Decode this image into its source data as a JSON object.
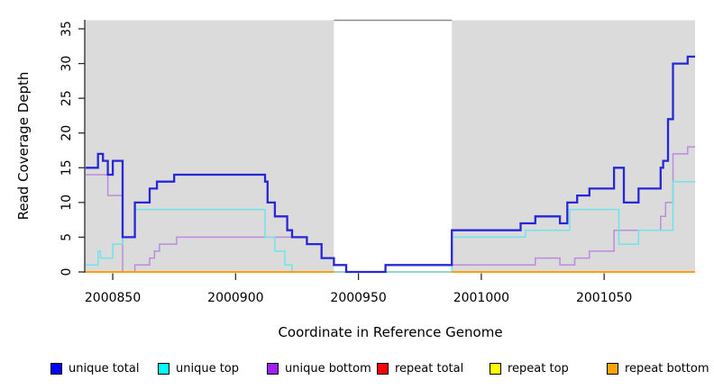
{
  "chart_data": {
    "type": "line",
    "subtype": "step-coverage",
    "title": "",
    "xlabel": "Coordinate in Reference Genome",
    "ylabel": "Read Coverage Depth",
    "xlim": [
      2000838.6,
      2001087
    ],
    "ylim": [
      0,
      36.2
    ],
    "xticks": [
      2000850,
      2000900,
      2000950,
      2001000,
      2001050
    ],
    "yticks": [
      0,
      5,
      10,
      15,
      20,
      25,
      30,
      35
    ],
    "grid": "off",
    "legend_position": "bottom",
    "plot_bg": "#DBDBDB",
    "gap_region": {
      "x0": 2000940,
      "x1": 2000988,
      "fill": "#FFFFFF",
      "top_border": "#8C8C8C"
    },
    "xend": 2001087,
    "series": [
      {
        "name": "unique total",
        "legend_color": "#0000FF",
        "line_color": "#2727D8",
        "width": 2.3,
        "steps": [
          [
            2000839,
            15
          ],
          [
            2000844,
            17
          ],
          [
            2000846,
            16
          ],
          [
            2000848,
            14
          ],
          [
            2000850,
            16
          ],
          [
            2000854,
            5
          ],
          [
            2000859,
            10
          ],
          [
            2000865,
            12
          ],
          [
            2000868,
            13
          ],
          [
            2000875,
            14
          ],
          [
            2000912,
            13
          ],
          [
            2000913,
            10
          ],
          [
            2000916,
            8
          ],
          [
            2000921,
            6
          ],
          [
            2000923,
            5
          ],
          [
            2000929,
            4
          ],
          [
            2000935,
            2
          ],
          [
            2000940,
            1
          ],
          [
            2000945,
            0
          ],
          [
            2000961,
            1
          ],
          [
            2000988,
            6
          ],
          [
            2001016,
            7
          ],
          [
            2001022,
            8
          ],
          [
            2001032,
            7
          ],
          [
            2001035,
            10
          ],
          [
            2001039,
            11
          ],
          [
            2001044,
            12
          ],
          [
            2001054,
            15
          ],
          [
            2001058,
            10
          ],
          [
            2001064,
            12
          ],
          [
            2001073,
            15
          ],
          [
            2001074,
            16
          ],
          [
            2001076,
            22
          ],
          [
            2001078,
            30
          ],
          [
            2001084,
            31
          ]
        ]
      },
      {
        "name": "unique top",
        "legend_color": "#00FFFF",
        "line_color": "#6FE4EA",
        "width": 1.5,
        "steps": [
          [
            2000839,
            1
          ],
          [
            2000844,
            3
          ],
          [
            2000845,
            2
          ],
          [
            2000850,
            4
          ],
          [
            2000854,
            5
          ],
          [
            2000859,
            9
          ],
          [
            2000912,
            5
          ],
          [
            2000916,
            3
          ],
          [
            2000920,
            1
          ],
          [
            2000923,
            0
          ],
          [
            2000988,
            5
          ],
          [
            2001018,
            6
          ],
          [
            2001036,
            9
          ],
          [
            2001056,
            4
          ],
          [
            2001064,
            6
          ],
          [
            2001078,
            13
          ]
        ]
      },
      {
        "name": "unique bottom",
        "legend_color": "#A020F0",
        "line_color": "#BA8DDC",
        "width": 1.5,
        "steps": [
          [
            2000839,
            14
          ],
          [
            2000848,
            11
          ],
          [
            2000854,
            0
          ],
          [
            2000859,
            1
          ],
          [
            2000865,
            2
          ],
          [
            2000867,
            3
          ],
          [
            2000869,
            4
          ],
          [
            2000876,
            5
          ],
          [
            2000929,
            4
          ],
          [
            2000935,
            2
          ],
          [
            2000940,
            1
          ],
          [
            2000945,
            0
          ],
          [
            2000961,
            1
          ],
          [
            2001022,
            2
          ],
          [
            2001032,
            1
          ],
          [
            2001038,
            2
          ],
          [
            2001044,
            3
          ],
          [
            2001054,
            6
          ],
          [
            2001073,
            8
          ],
          [
            2001075,
            10
          ],
          [
            2001078,
            17
          ],
          [
            2001084,
            18
          ]
        ]
      },
      {
        "name": "repeat total",
        "legend_color": "#FF0000",
        "line_color": "#EE0000",
        "width": 1.5,
        "steps": [
          [
            2000839,
            0
          ]
        ]
      },
      {
        "name": "repeat top",
        "legend_color": "#FFFF00",
        "line_color": "#FFFF00",
        "width": 1.5,
        "steps": [
          [
            2000839,
            0
          ]
        ]
      },
      {
        "name": "repeat bottom",
        "legend_color": "#FFA500",
        "line_color": "#FF9E10",
        "width": 2,
        "steps": [
          [
            2000839,
            0
          ],
          [
            2000940,
            null
          ],
          [
            2000988,
            0
          ]
        ]
      }
    ],
    "gap_line": {
      "note": "pale green baseline visible inside gap region",
      "color": "#9CDE9C",
      "width": 1.5,
      "steps": [
        [
          2000940,
          0
        ]
      ],
      "xend": 2000988
    }
  }
}
